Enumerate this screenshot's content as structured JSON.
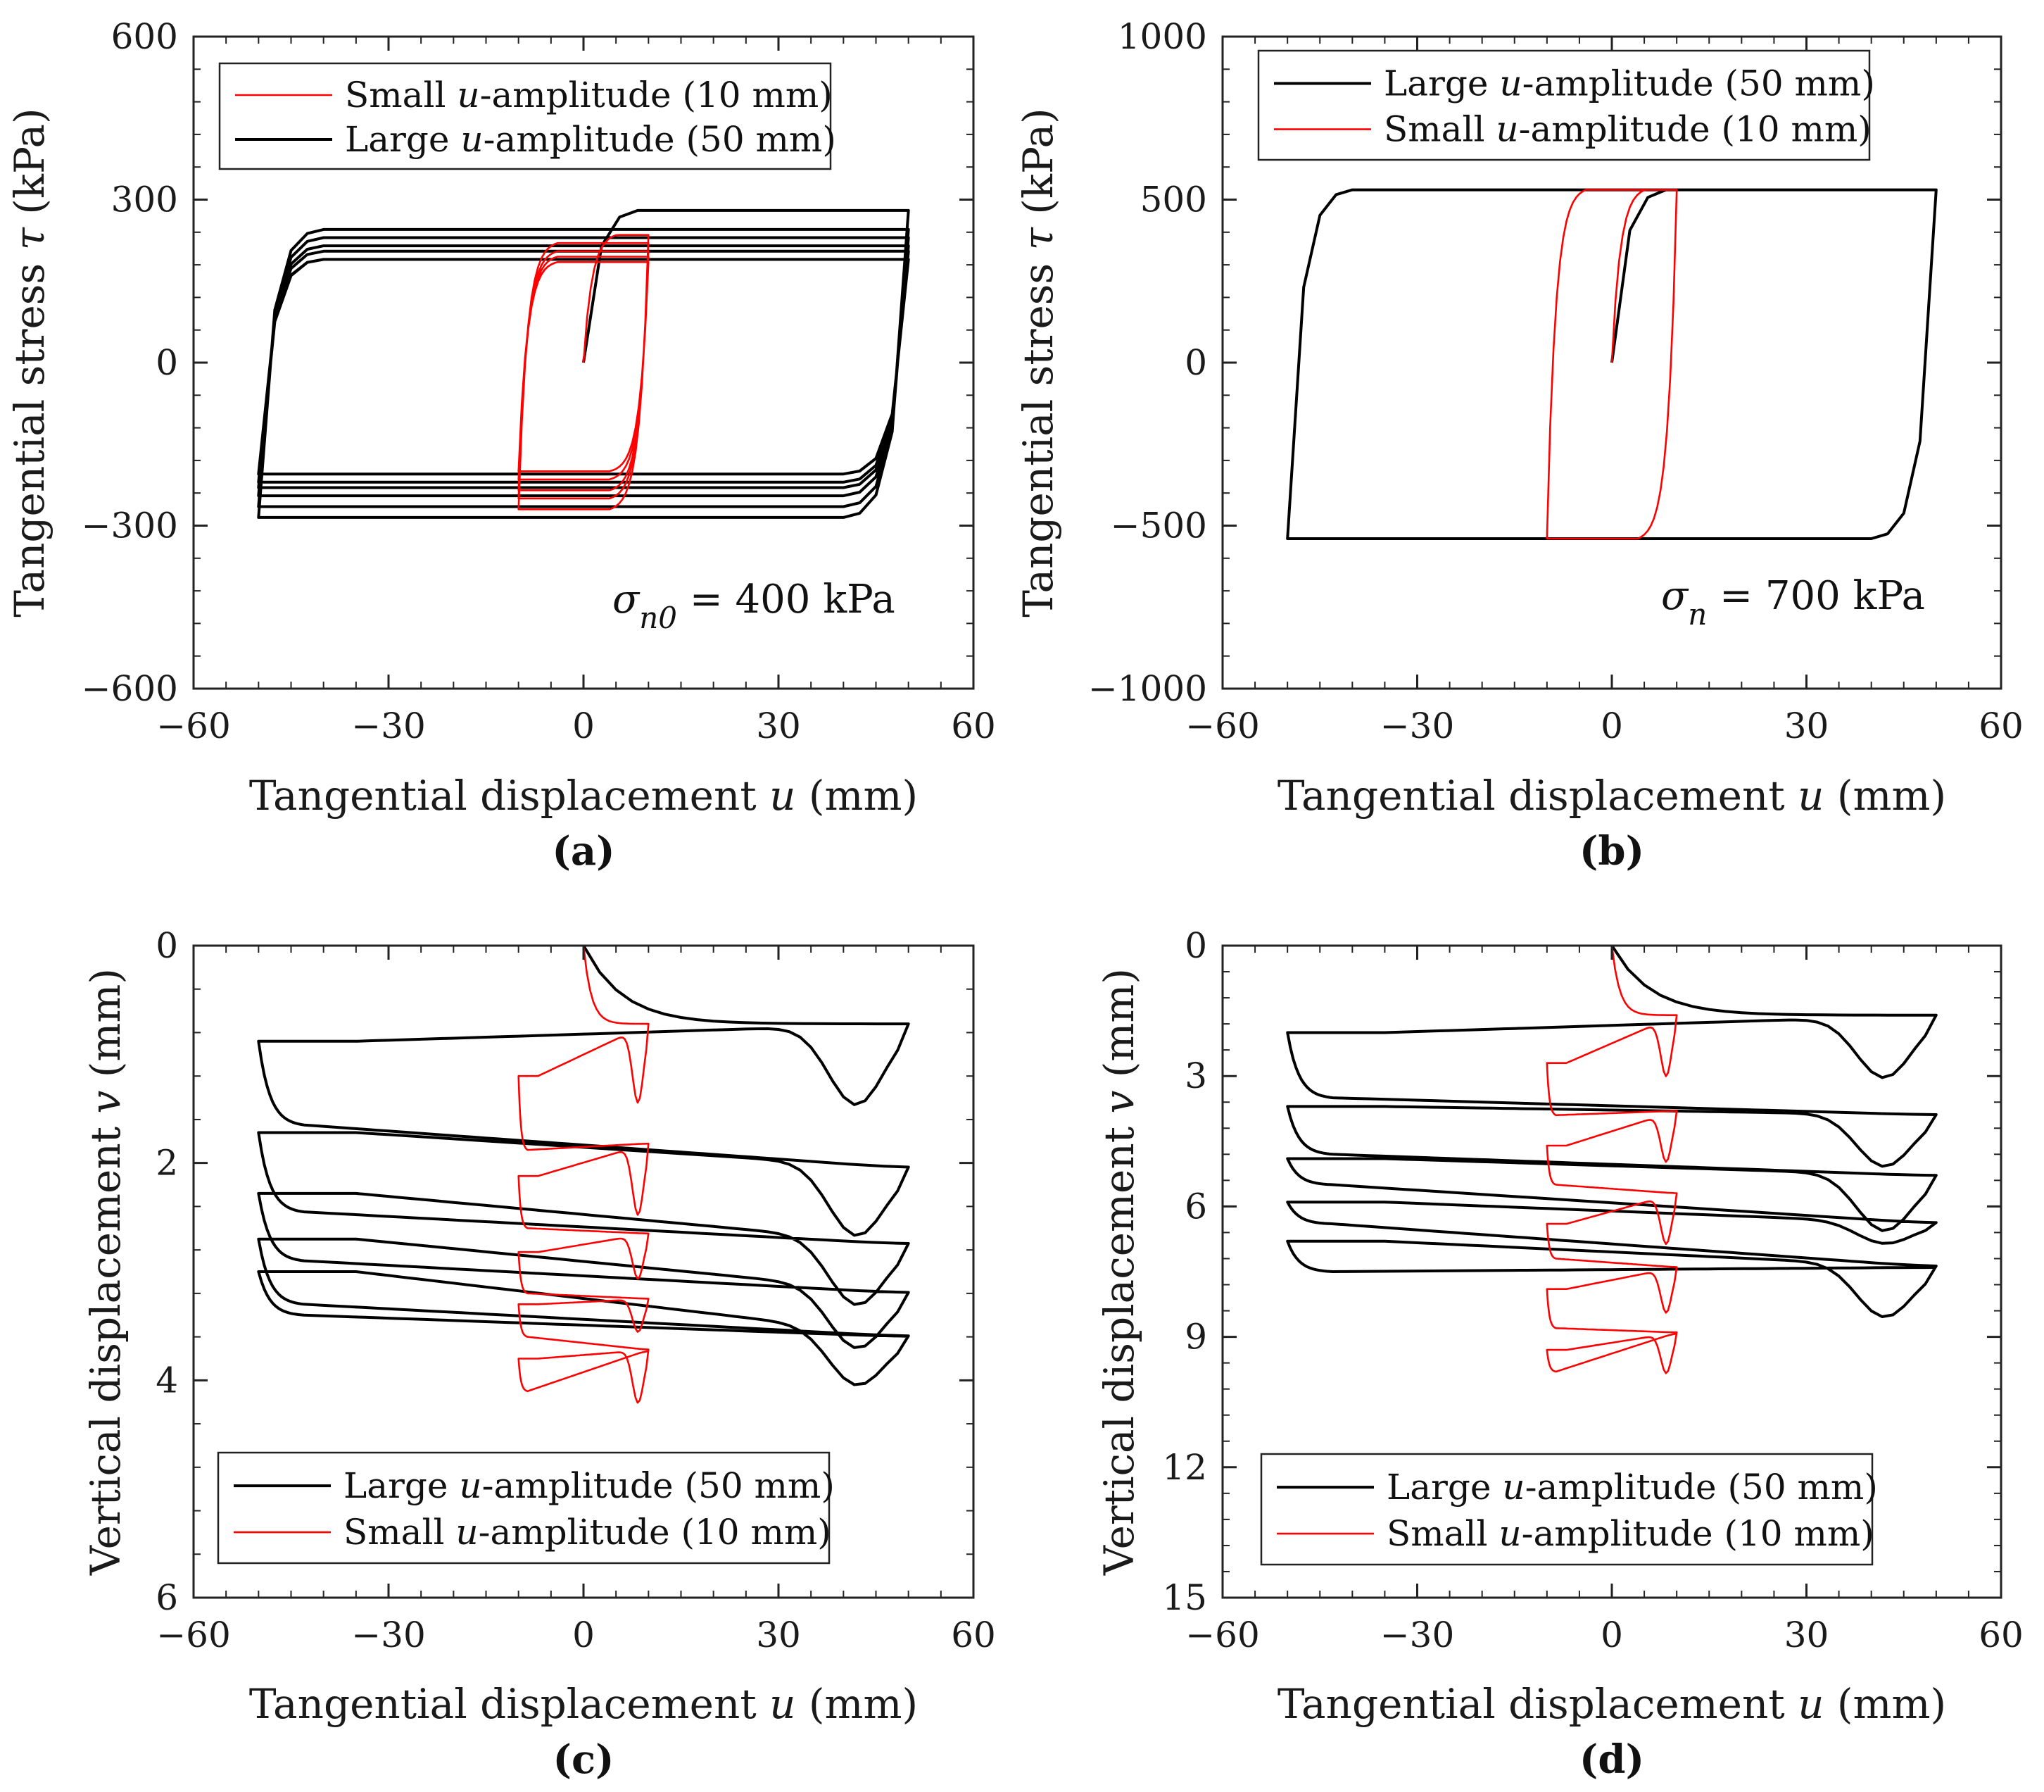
{
  "colors": {
    "large": "#000000",
    "small": "#ff0000",
    "axis": "#222222"
  },
  "chart_data": [
    {
      "id": "a",
      "type": "line",
      "panel_label": "(a)",
      "xlabel": "Tangential displacement u (mm)",
      "xlabel_parts": [
        "Tangential displacement ",
        "u",
        " (mm)"
      ],
      "ylabel": "Tangential stress τ (kPa)",
      "ylabel_parts": [
        "Tangential stress ",
        "τ",
        " (kPa)"
      ],
      "xlim": [
        -60,
        60
      ],
      "ylim": [
        -600,
        600
      ],
      "xticks": [
        -60,
        -30,
        0,
        30,
        60
      ],
      "yticks": [
        -600,
        -300,
        0,
        300,
        600
      ],
      "xtick_labels": [
        "−60",
        "−30",
        "0",
        "30",
        "60"
      ],
      "ytick_labels": [
        "−600",
        "−300",
        "0",
        "300",
        "600"
      ],
      "legend": [
        {
          "key": "small",
          "parts": [
            "Small ",
            "u",
            "-amplitude (10 mm)"
          ],
          "text": "Small u-amplitude (10 mm)"
        },
        {
          "key": "large",
          "parts": [
            "Large ",
            "u",
            "-amplitude (50 mm)"
          ],
          "text": "Large u-amplitude (50 mm)"
        }
      ],
      "annotation": {
        "text": "σn0 = 400 kPa",
        "symbol": "σ",
        "sub": "n0",
        "rest": " = 400 kPa"
      },
      "series": [
        {
          "name": "Large u-amplitude (50 mm)",
          "key": "large",
          "kind": "stress",
          "amp": 50,
          "initPeak": 280,
          "upper": [
            280,
            245,
            230,
            215,
            205,
            190
          ],
          "lower": [
            -285,
            -265,
            -245,
            -230,
            -220,
            -205
          ]
        },
        {
          "name": "Small u-amplitude (10 mm)",
          "key": "small",
          "kind": "stress",
          "amp": 10,
          "initPeak": 235,
          "upper": [
            235,
            220,
            205,
            195,
            185
          ],
          "lower": [
            -270,
            -250,
            -235,
            -215,
            -200
          ]
        }
      ]
    },
    {
      "id": "b",
      "type": "line",
      "panel_label": "(b)",
      "xlabel": "Tangential displacement u (mm)",
      "xlabel_parts": [
        "Tangential displacement ",
        "u",
        " (mm)"
      ],
      "ylabel": "Tangential stress τ (kPa)",
      "ylabel_parts": [
        "Tangential stress ",
        "τ",
        " (kPa)"
      ],
      "xlim": [
        -60,
        60
      ],
      "ylim": [
        -1000,
        1000
      ],
      "xticks": [
        -60,
        -30,
        0,
        30,
        60
      ],
      "yticks": [
        -1000,
        -500,
        0,
        500,
        1000
      ],
      "xtick_labels": [
        "−60",
        "−30",
        "0",
        "30",
        "60"
      ],
      "ytick_labels": [
        "−1000",
        "−500",
        "0",
        "500",
        "1000"
      ],
      "legend": [
        {
          "key": "large",
          "parts": [
            "Large ",
            "u",
            "-amplitude (50 mm)"
          ],
          "text": "Large u-amplitude (50 mm)"
        },
        {
          "key": "small",
          "parts": [
            "Small ",
            "u",
            "-amplitude (10 mm)"
          ],
          "text": "Small u-amplitude (10 mm)"
        }
      ],
      "annotation": {
        "text": "σn = 700 kPa",
        "symbol": "σ",
        "sub": "n",
        "rest": " = 700 kPa"
      },
      "series": [
        {
          "name": "Large u-amplitude (50 mm)",
          "key": "large",
          "kind": "stress",
          "amp": 50,
          "initPeak": 530,
          "upper": [
            530
          ],
          "lower": [
            -540
          ]
        },
        {
          "name": "Small u-amplitude (10 mm)",
          "key": "small",
          "kind": "stress",
          "amp": 10,
          "initPeak": 530,
          "upper": [
            530
          ],
          "lower": [
            -540
          ]
        }
      ]
    },
    {
      "id": "c",
      "type": "line",
      "panel_label": "(c)",
      "xlabel": "Tangential displacement u (mm)",
      "xlabel_parts": [
        "Tangential displacement ",
        "u",
        " (mm)"
      ],
      "ylabel": "Vertical displacement v (mm)",
      "ylabel_parts": [
        "Vertical displacement ",
        "v",
        " (mm)"
      ],
      "xlim": [
        -60,
        60
      ],
      "ylim": [
        0,
        6
      ],
      "y_inverted": true,
      "xticks": [
        -60,
        -30,
        0,
        30,
        60
      ],
      "yticks": [
        0,
        2,
        4,
        6
      ],
      "xtick_labels": [
        "−60",
        "−30",
        "0",
        "30",
        "60"
      ],
      "ytick_labels": [
        "0",
        "2",
        "4",
        "6"
      ],
      "legend": [
        {
          "key": "large",
          "parts": [
            "Large ",
            "u",
            "-amplitude (50 mm)"
          ],
          "text": "Large u-amplitude (50 mm)"
        },
        {
          "key": "small",
          "parts": [
            "Small ",
            "u",
            "-amplitude (10 mm)"
          ],
          "text": "Small u-amplitude (10 mm)"
        }
      ],
      "series": [
        {
          "name": "Large u-amplitude (50 mm)",
          "key": "large",
          "kind": "vertical",
          "amp": 50,
          "vStart": 0.72,
          "cycles": [
            {
              "vLeft": 0.88,
              "vLeftPlat": 1.65,
              "vRightMin": 1.45,
              "vRight": 2.05
            },
            {
              "vLeft": 1.72,
              "vLeftPlat": 2.45,
              "vRightMin": 2.7,
              "vRight": 2.75
            },
            {
              "vLeft": 2.28,
              "vLeftPlat": 2.9,
              "vRightMin": 3.35,
              "vRight": 3.2
            },
            {
              "vLeft": 2.7,
              "vLeftPlat": 3.3,
              "vRightMin": 3.75,
              "vRight": 3.6
            },
            {
              "vLeft": 3.0,
              "vLeftPlat": 3.4,
              "vRightMin": 4.1,
              "vRight": 3.6
            }
          ]
        },
        {
          "name": "Small u-amplitude (10 mm)",
          "key": "small",
          "kind": "vertical",
          "amp": 10,
          "vStart": 0.72,
          "cycles": [
            {
              "vLeft": 1.2,
              "vLeftPlat": 1.88,
              "vRightMin": 1.4,
              "vRight": 1.82
            },
            {
              "vLeft": 2.12,
              "vLeftPlat": 2.6,
              "vRightMin": 2.45,
              "vRight": 2.65
            },
            {
              "vLeft": 2.82,
              "vLeftPlat": 3.2,
              "vRightMin": 3.05,
              "vRight": 3.25
            },
            {
              "vLeft": 3.3,
              "vLeftPlat": 3.6,
              "vRightMin": 3.55,
              "vRight": 3.72
            },
            {
              "vLeft": 3.8,
              "vLeftPlat": 4.1,
              "vRightMin": 4.2,
              "vRight": 3.72
            }
          ]
        }
      ]
    },
    {
      "id": "d",
      "type": "line",
      "panel_label": "(d)",
      "xlabel": "Tangential displacement u (mm)",
      "xlabel_parts": [
        "Tangential displacement ",
        "u",
        " (mm)"
      ],
      "ylabel": "Vertical displacement v (mm)",
      "ylabel_parts": [
        "Vertical displacement ",
        "v",
        " (mm)"
      ],
      "xlim": [
        -60,
        60
      ],
      "ylim": [
        0,
        15
      ],
      "y_inverted": true,
      "xticks": [
        -60,
        -30,
        0,
        30,
        60
      ],
      "yticks": [
        0,
        3,
        6,
        9,
        12,
        15
      ],
      "xtick_labels": [
        "−60",
        "−30",
        "0",
        "30",
        "60"
      ],
      "ytick_labels": [
        "0",
        "3",
        "6",
        "9",
        "12",
        "15"
      ],
      "legend": [
        {
          "key": "large",
          "parts": [
            "Large ",
            "u",
            "-amplitude (50 mm)"
          ],
          "text": "Large u-amplitude (50 mm)"
        },
        {
          "key": "small",
          "parts": [
            "Small ",
            "u",
            "-amplitude (10 mm)"
          ],
          "text": "Small u-amplitude (10 mm)"
        }
      ],
      "series": [
        {
          "name": "Large u-amplitude (50 mm)",
          "key": "large",
          "kind": "vertical",
          "amp": 50,
          "vStart": 1.6,
          "cycles": [
            {
              "vLeft": 2.0,
              "vLeftPlat": 3.5,
              "vRightMin": 3.0,
              "vRight": 3.9
            },
            {
              "vLeft": 3.7,
              "vLeftPlat": 4.8,
              "vRightMin": 5.1,
              "vRight": 5.3
            },
            {
              "vLeft": 4.9,
              "vLeftPlat": 5.5,
              "vRightMin": 6.6,
              "vRight": 6.4
            },
            {
              "vLeft": 5.9,
              "vLeftPlat": 6.4,
              "vRightMin": 6.9,
              "vRight": 7.4
            },
            {
              "vLeft": 6.8,
              "vLeftPlat": 7.5,
              "vRightMin": 8.6,
              "vRight": 7.4
            }
          ]
        },
        {
          "name": "Small u-amplitude (10 mm)",
          "key": "small",
          "kind": "vertical",
          "amp": 10,
          "vStart": 1.6,
          "cycles": [
            {
              "vLeft": 2.7,
              "vLeftPlat": 3.9,
              "vRightMin": 2.9,
              "vRight": 3.8
            },
            {
              "vLeft": 4.6,
              "vLeftPlat": 5.5,
              "vRightMin": 4.9,
              "vRight": 5.7
            },
            {
              "vLeft": 6.4,
              "vLeftPlat": 7.2,
              "vRightMin": 6.8,
              "vRight": 7.4
            },
            {
              "vLeft": 7.9,
              "vLeftPlat": 8.8,
              "vRightMin": 8.4,
              "vRight": 8.9
            },
            {
              "vLeft": 9.3,
              "vLeftPlat": 9.8,
              "vRightMin": 9.8,
              "vRight": 8.9
            }
          ]
        }
      ]
    }
  ]
}
